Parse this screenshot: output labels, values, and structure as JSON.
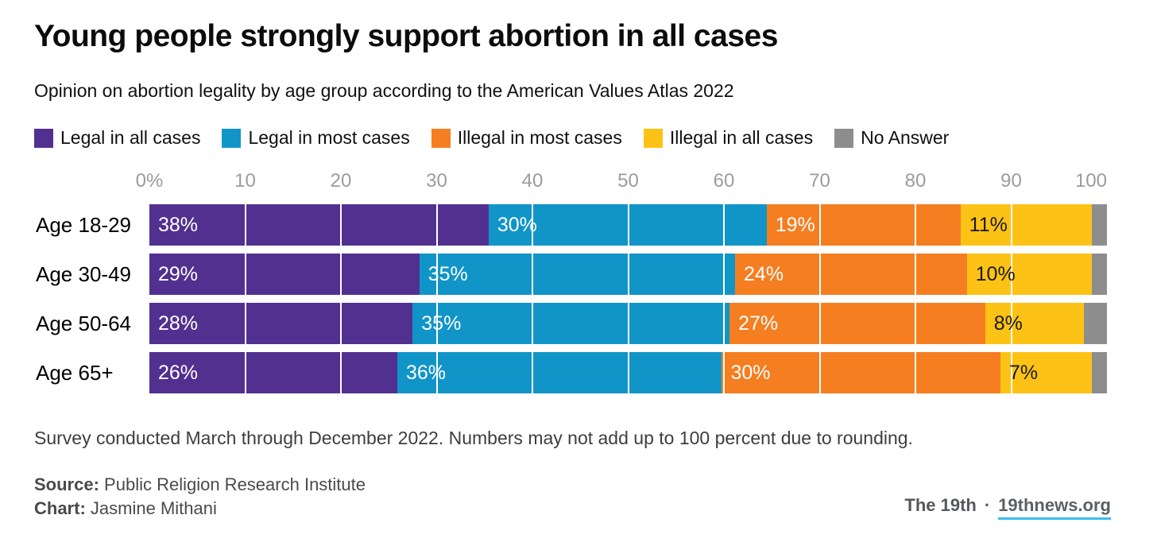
{
  "header": {
    "title": "Young people strongly support abortion in all cases",
    "subtitle": "Opinion on abortion legality by age group according to the American Values Atlas 2022"
  },
  "legend": [
    {
      "label": "Legal in all cases",
      "color": "#523090"
    },
    {
      "label": "Legal in most cases",
      "color": "#1195c8"
    },
    {
      "label": "Illegal in most cases",
      "color": "#f57e20"
    },
    {
      "label": "Illegal in all cases",
      "color": "#fcc216"
    },
    {
      "label": "No Answer",
      "color": "#8d8d8d"
    }
  ],
  "axis": {
    "ticks": [
      "0%",
      "10",
      "20",
      "30",
      "40",
      "50",
      "60",
      "70",
      "80",
      "90",
      "100"
    ],
    "tick_color": "#9c9c9c",
    "gridline_color": "#ffffff"
  },
  "chart_data": {
    "type": "bar",
    "stacked": true,
    "orientation": "horizontal",
    "title": "Young people strongly support abortion in all cases",
    "subtitle": "Opinion on abortion legality by age group according to the American Values Atlas 2022",
    "xlabel": "",
    "ylabel": "",
    "xlim": [
      0,
      100
    ],
    "grid": true,
    "legend_position": "top",
    "categories": [
      "Age 18-29",
      "Age 30-49",
      "Age 50-64",
      "Age 65+"
    ],
    "series": [
      {
        "name": "Legal in all cases",
        "color": "#523090",
        "label_color": "#ffffff",
        "show_labels": true,
        "values": [
          38,
          29,
          28,
          26
        ]
      },
      {
        "name": "Legal in most cases",
        "color": "#1195c8",
        "label_color": "#ffffff",
        "show_labels": true,
        "values": [
          30,
          35,
          35,
          36
        ]
      },
      {
        "name": "Illegal in most cases",
        "color": "#f57e20",
        "label_color": "#ffffff",
        "show_labels": true,
        "values": [
          19,
          24,
          27,
          30
        ]
      },
      {
        "name": "Illegal in all cases",
        "color": "#fcc216",
        "label_color": "#1a1a1a",
        "show_labels": true,
        "values": [
          11,
          10,
          8,
          7
        ]
      },
      {
        "name": "No Answer",
        "color": "#8d8d8d",
        "label_color": "#ffffff",
        "show_labels": false,
        "values": [
          2,
          2,
          3,
          2
        ]
      }
    ],
    "value_suffix": "%"
  },
  "footer": {
    "note": "Survey conducted March through December 2022. Numbers may not add up to 100 percent due to rounding.",
    "source_label": "Source:",
    "source_value": "Public Religion Research Institute",
    "chart_label": "Chart:",
    "chart_value": "Jasmine Mithani",
    "brand": "The 19th",
    "separator": "·",
    "site": "19thnews.org",
    "link_underline_color": "#3abdf0"
  }
}
